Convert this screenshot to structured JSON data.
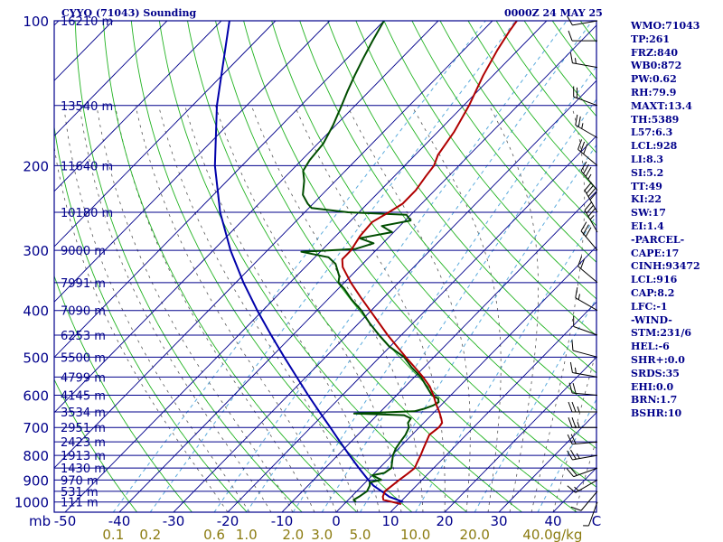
{
  "header": {
    "title": "CYYQ (71043) Sounding",
    "datetime": "0000Z 24 MAY 25"
  },
  "indices": [
    {
      "label": "WMO:71043"
    },
    {
      "label": "TP:261"
    },
    {
      "label": "FRZ:840"
    },
    {
      "label": "WB0:872"
    },
    {
      "label": "PW:0.62"
    },
    {
      "label": "RH:79.9"
    },
    {
      "label": "MAXT:13.4"
    },
    {
      "label": "TH:5389"
    },
    {
      "label": "L57:6.3"
    },
    {
      "label": "LCL:928"
    },
    {
      "label": "LI:8.3"
    },
    {
      "label": "SI:5.2"
    },
    {
      "label": "TT:49"
    },
    {
      "label": "KI:22"
    },
    {
      "label": "SW:17"
    },
    {
      "label": "EI:1.4"
    },
    {
      "label": "-PARCEL-"
    },
    {
      "label": "CAPE:17"
    },
    {
      "label": "CINH:93472"
    },
    {
      "label": "LCL:916"
    },
    {
      "label": "CAP:8.2"
    },
    {
      "label": "LFC:-1"
    },
    {
      "label": "-WIND-"
    },
    {
      "label": "STM:231/6"
    },
    {
      "label": "HEL:-6"
    },
    {
      "label": "SHR+:0.0"
    },
    {
      "label": "SRDS:35"
    },
    {
      "label": "EHI:0.0"
    },
    {
      "label": "BRN:1.7"
    },
    {
      "label": "BSHR:10"
    }
  ],
  "chart_data": {
    "type": "line",
    "diagram": "skew-T log-P",
    "x_unit_label": "C",
    "y_unit_label": "mb",
    "mixing_unit_label": "g/kg",
    "temperature_ticks": [
      {
        "value": -50,
        "label": "-50"
      },
      {
        "value": -40,
        "label": "-40"
      },
      {
        "value": -30,
        "label": "-30"
      },
      {
        "value": -20,
        "label": "-20"
      },
      {
        "value": -10,
        "label": "-10"
      },
      {
        "value": 0,
        "label": "0"
      },
      {
        "value": 10,
        "label": "10"
      },
      {
        "value": 20,
        "label": "20"
      },
      {
        "value": 30,
        "label": "30"
      },
      {
        "value": 40,
        "label": "40"
      }
    ],
    "pressure_ticks": [
      {
        "value": 100,
        "label": "100"
      },
      {
        "value": 200,
        "label": "200"
      },
      {
        "value": 300,
        "label": "300"
      },
      {
        "value": 400,
        "label": "400"
      },
      {
        "value": 500,
        "label": "500"
      },
      {
        "value": 600,
        "label": "600"
      },
      {
        "value": 700,
        "label": "700"
      },
      {
        "value": 800,
        "label": "800"
      },
      {
        "value": 900,
        "label": "900"
      },
      {
        "value": 1000,
        "label": "1000"
      }
    ],
    "height_labels": [
      {
        "p": 100,
        "label": "16210 m"
      },
      {
        "p": 150,
        "label": "13540 m"
      },
      {
        "p": 200,
        "label": "11640 m"
      },
      {
        "p": 250,
        "label": "10180 m"
      },
      {
        "p": 300,
        "label": "9000 m"
      },
      {
        "p": 350,
        "label": "7991 m"
      },
      {
        "p": 400,
        "label": "7090 m"
      },
      {
        "p": 450,
        "label": "6253 m"
      },
      {
        "p": 500,
        "label": "5500 m"
      },
      {
        "p": 550,
        "label": "4799 m"
      },
      {
        "p": 600,
        "label": "4145 m"
      },
      {
        "p": 650,
        "label": "3534 m"
      },
      {
        "p": 700,
        "label": "2951 m"
      },
      {
        "p": 750,
        "label": "2423 m"
      },
      {
        "p": 800,
        "label": "1913 m"
      },
      {
        "p": 850,
        "label": "1430 m"
      },
      {
        "p": 900,
        "label": "970 m"
      },
      {
        "p": 950,
        "label": "531 m"
      },
      {
        "p": 1000,
        "label": "111 m"
      }
    ],
    "mixing_ratio_labels": [
      {
        "value": 0.1,
        "label": "0.1"
      },
      {
        "value": 0.2,
        "label": "0.2"
      },
      {
        "value": 0.6,
        "label": "0.6"
      },
      {
        "value": 1.0,
        "label": "1.0"
      },
      {
        "value": 2.0,
        "label": "2.0"
      },
      {
        "value": 3.0,
        "label": "3.0"
      },
      {
        "value": 5.0,
        "label": "5.0"
      },
      {
        "value": 10.0,
        "label": "10.0"
      },
      {
        "value": 20.0,
        "label": "20.0"
      },
      {
        "value": 40.0,
        "label": "40.0"
      }
    ],
    "temperature_profile": [
      [
        1010,
        10.5
      ],
      [
        1000,
        8.5
      ],
      [
        990,
        6.5
      ],
      [
        975,
        5.8
      ],
      [
        950,
        5.2
      ],
      [
        925,
        5.5
      ],
      [
        900,
        5.8
      ],
      [
        875,
        6.2
      ],
      [
        850,
        6.5
      ],
      [
        830,
        6.0
      ],
      [
        800,
        5.3
      ],
      [
        775,
        4.6
      ],
      [
        750,
        3.9
      ],
      [
        725,
        3.2
      ],
      [
        700,
        3.6
      ],
      [
        685,
        3.4
      ],
      [
        670,
        2.4
      ],
      [
        650,
        0.9
      ],
      [
        625,
        -1.2
      ],
      [
        600,
        -3.2
      ],
      [
        575,
        -5.5
      ],
      [
        550,
        -8.4
      ],
      [
        525,
        -11.7
      ],
      [
        500,
        -15.2
      ],
      [
        450,
        -22.5
      ],
      [
        400,
        -30.2
      ],
      [
        375,
        -34.4
      ],
      [
        350,
        -38.8
      ],
      [
        325,
        -43.1
      ],
      [
        313,
        -44.6
      ],
      [
        300,
        -44.6
      ],
      [
        280,
        -45.5
      ],
      [
        262,
        -45.8
      ],
      [
        250,
        -44.5
      ],
      [
        240,
        -43.5
      ],
      [
        225,
        -43.5
      ],
      [
        210,
        -44.2
      ],
      [
        200,
        -44.6
      ],
      [
        190,
        -45.8
      ],
      [
        170,
        -47.0
      ],
      [
        150,
        -49.0
      ],
      [
        130,
        -51.8
      ],
      [
        115,
        -53.8
      ],
      [
        105,
        -55.0
      ],
      [
        100,
        -55.5
      ]
    ],
    "dewpoint_profile": [
      [
        1000,
        1.8
      ],
      [
        990,
        1.0
      ],
      [
        975,
        1.4
      ],
      [
        950,
        1.9
      ],
      [
        925,
        1.4
      ],
      [
        910,
        0.8
      ],
      [
        900,
        2.5
      ],
      [
        880,
        0.0
      ],
      [
        870,
        1.8
      ],
      [
        850,
        2.2
      ],
      [
        830,
        1.4
      ],
      [
        800,
        0.2
      ],
      [
        775,
        -0.5
      ],
      [
        750,
        -0.9
      ],
      [
        725,
        -1.2
      ],
      [
        700,
        -1.9
      ],
      [
        685,
        -2.9
      ],
      [
        670,
        -3.2
      ],
      [
        660,
        -5.0
      ],
      [
        655,
        -14.5
      ],
      [
        648,
        -3.8
      ],
      [
        640,
        -2.5
      ],
      [
        630,
        -1.4
      ],
      [
        620,
        -1.0
      ],
      [
        610,
        -1.7
      ],
      [
        600,
        -3.5
      ],
      [
        575,
        -6.1
      ],
      [
        550,
        -8.8
      ],
      [
        525,
        -12.3
      ],
      [
        500,
        -15.5
      ],
      [
        475,
        -20.2
      ],
      [
        450,
        -24.1
      ],
      [
        425,
        -28.0
      ],
      [
        400,
        -31.8
      ],
      [
        380,
        -35.5
      ],
      [
        360,
        -39.0
      ],
      [
        350,
        -41.1
      ],
      [
        340,
        -42.0
      ],
      [
        320,
        -45.0
      ],
      [
        310,
        -47.5
      ],
      [
        302,
        -53.5
      ],
      [
        298,
        -44.0
      ],
      [
        290,
        -41.7
      ],
      [
        283,
        -45.2
      ],
      [
        275,
        -40.3
      ],
      [
        267,
        -43.3
      ],
      [
        260,
        -39.0
      ],
      [
        253,
        -40.8
      ],
      [
        250,
        -52.0
      ],
      [
        245,
        -59.5
      ],
      [
        240,
        -61.0
      ],
      [
        230,
        -63.5
      ],
      [
        215,
        -65.8
      ],
      [
        205,
        -67.8
      ],
      [
        195,
        -68.5
      ],
      [
        180,
        -69.0
      ],
      [
        165,
        -70.5
      ],
      [
        150,
        -72.5
      ],
      [
        140,
        -74.0
      ],
      [
        130,
        -75.5
      ],
      [
        120,
        -77.0
      ],
      [
        110,
        -78.5
      ],
      [
        100,
        -80.0
      ]
    ],
    "parcel_profile": [
      [
        1000,
        10.5
      ],
      [
        975,
        7.0
      ],
      [
        950,
        4.6
      ],
      [
        925,
        2.1
      ],
      [
        900,
        0.1
      ],
      [
        850,
        -3.8
      ],
      [
        800,
        -7.8
      ],
      [
        750,
        -12.0
      ],
      [
        700,
        -16.4
      ],
      [
        650,
        -21.2
      ],
      [
        600,
        -26.3
      ],
      [
        550,
        -31.7
      ],
      [
        500,
        -37.6
      ],
      [
        450,
        -44.0
      ],
      [
        400,
        -51.0
      ],
      [
        350,
        -58.6
      ],
      [
        300,
        -66.8
      ],
      [
        250,
        -75.6
      ],
      [
        200,
        -85.0
      ],
      [
        150,
        -95.5
      ],
      [
        100,
        -108.5
      ]
    ],
    "wind_barbs": [
      {
        "p": 1000,
        "dir": 200,
        "spd": 5
      },
      {
        "p": 950,
        "dir": 220,
        "spd": 10
      },
      {
        "p": 900,
        "dir": 240,
        "spd": 15
      },
      {
        "p": 850,
        "dir": 250,
        "spd": 20
      },
      {
        "p": 800,
        "dir": 260,
        "spd": 25
      },
      {
        "p": 750,
        "dir": 265,
        "spd": 20
      },
      {
        "p": 700,
        "dir": 270,
        "spd": 25
      },
      {
        "p": 650,
        "dir": 270,
        "spd": 25
      },
      {
        "p": 600,
        "dir": 275,
        "spd": 20
      },
      {
        "p": 550,
        "dir": 280,
        "spd": 15
      },
      {
        "p": 500,
        "dir": 285,
        "spd": 10
      },
      {
        "p": 450,
        "dir": 290,
        "spd": 10
      },
      {
        "p": 400,
        "dir": 300,
        "spd": 15
      },
      {
        "p": 350,
        "dir": 310,
        "spd": 20
      },
      {
        "p": 300,
        "dir": 320,
        "spd": 30
      },
      {
        "p": 275,
        "dir": 330,
        "spd": 35
      },
      {
        "p": 250,
        "dir": 330,
        "spd": 40
      },
      {
        "p": 225,
        "dir": 320,
        "spd": 35
      },
      {
        "p": 200,
        "dir": 310,
        "spd": 30
      },
      {
        "p": 175,
        "dir": 300,
        "spd": 25
      },
      {
        "p": 150,
        "dir": 290,
        "spd": 20
      },
      {
        "p": 125,
        "dir": 280,
        "spd": 15
      },
      {
        "p": 110,
        "dir": 270,
        "spd": 10
      },
      {
        "p": 100,
        "dir": 260,
        "spd": 10
      }
    ],
    "colors": {
      "frame": "#00008b",
      "isobar": "#00008b",
      "isotherm": "#00008b",
      "dry_adiabat": "#22b322",
      "moist_adiabat": "#555555",
      "mixing_ratio": "#5aaadc",
      "temperature": "#b00000",
      "dewpoint": "#004d00",
      "parcel": "#0000aa",
      "mixing_label": "#8b7b10",
      "barb": "#000000"
    }
  }
}
